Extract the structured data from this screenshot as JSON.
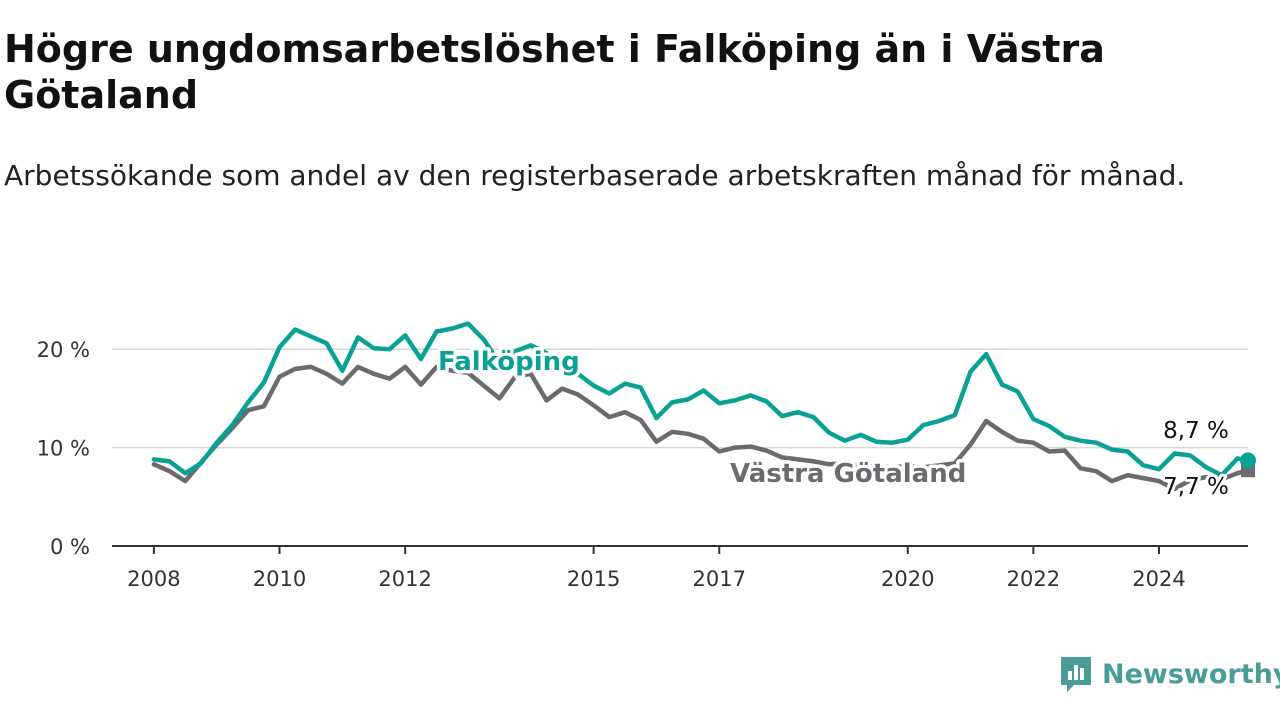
{
  "header": {
    "title": "Högre ungdomsarbetslöshet i Falköping än i Västra Götaland",
    "subtitle": "Arbetssökande som andel av den registerbaserade arbetskraften månad för månad."
  },
  "branding": {
    "name": "Newsworthy",
    "icon": "newsworthy-logo-icon"
  },
  "colors": {
    "falkoping": "#0aa195",
    "vastra_gotaland": "#6b6b6f",
    "grid": "#d6d6d6",
    "axis": "#333333",
    "logo": "#4a9c97"
  },
  "chart_data": {
    "type": "line",
    "title": "Högre ungdomsarbetslöshet i Falköping än i Västra Götaland",
    "xlabel": "",
    "ylabel": "",
    "x_ticks": [
      "2008",
      "2010",
      "2012",
      "2015",
      "2017",
      "2020",
      "2022",
      "2024"
    ],
    "y_ticks": [
      "0 %",
      "10 %",
      "20 %"
    ],
    "ylim": [
      0,
      25
    ],
    "xlim": [
      "2007-05",
      "2025-06"
    ],
    "grid": true,
    "series": [
      {
        "name": "Falköping",
        "color": "#0aa195",
        "end_label": "8,7 %",
        "points": [
          [
            "2008-01",
            8.8
          ],
          [
            "2008-04",
            8.6
          ],
          [
            "2008-07",
            7.4
          ],
          [
            "2008-10",
            8.4
          ],
          [
            "2009-01",
            10.5
          ],
          [
            "2009-04",
            12.3
          ],
          [
            "2009-07",
            14.6
          ],
          [
            "2009-10",
            16.6
          ],
          [
            "2010-01",
            20.2
          ],
          [
            "2010-04",
            22.0
          ],
          [
            "2010-07",
            21.3
          ],
          [
            "2010-10",
            20.6
          ],
          [
            "2011-01",
            17.8
          ],
          [
            "2011-04",
            21.2
          ],
          [
            "2011-07",
            20.1
          ],
          [
            "2011-10",
            20.0
          ],
          [
            "2012-01",
            21.4
          ],
          [
            "2012-04",
            19.0
          ],
          [
            "2012-07",
            21.8
          ],
          [
            "2012-10",
            22.1
          ],
          [
            "2013-01",
            22.6
          ],
          [
            "2013-04",
            21.0
          ],
          [
            "2013-07",
            18.6
          ],
          [
            "2013-10",
            19.8
          ],
          [
            "2014-01",
            20.4
          ],
          [
            "2014-04",
            19.6
          ],
          [
            "2014-07",
            18.0
          ],
          [
            "2014-10",
            17.5
          ],
          [
            "2015-01",
            16.3
          ],
          [
            "2015-04",
            15.5
          ],
          [
            "2015-07",
            16.5
          ],
          [
            "2015-10",
            16.1
          ],
          [
            "2016-01",
            13.0
          ],
          [
            "2016-04",
            14.6
          ],
          [
            "2016-07",
            14.9
          ],
          [
            "2016-10",
            15.8
          ],
          [
            "2017-01",
            14.5
          ],
          [
            "2017-04",
            14.8
          ],
          [
            "2017-07",
            15.3
          ],
          [
            "2017-10",
            14.7
          ],
          [
            "2018-01",
            13.2
          ],
          [
            "2018-04",
            13.6
          ],
          [
            "2018-07",
            13.1
          ],
          [
            "2018-10",
            11.5
          ],
          [
            "2019-01",
            10.7
          ],
          [
            "2019-04",
            11.3
          ],
          [
            "2019-07",
            10.6
          ],
          [
            "2019-10",
            10.5
          ],
          [
            "2020-01",
            10.8
          ],
          [
            "2020-04",
            12.3
          ],
          [
            "2020-07",
            12.7
          ],
          [
            "2020-10",
            13.3
          ],
          [
            "2021-01",
            17.7
          ],
          [
            "2021-04",
            19.5
          ],
          [
            "2021-07",
            16.4
          ],
          [
            "2021-10",
            15.7
          ],
          [
            "2022-01",
            12.9
          ],
          [
            "2022-04",
            12.2
          ],
          [
            "2022-07",
            11.1
          ],
          [
            "2022-10",
            10.7
          ],
          [
            "2023-01",
            10.5
          ],
          [
            "2023-04",
            9.8
          ],
          [
            "2023-07",
            9.6
          ],
          [
            "2023-10",
            8.2
          ],
          [
            "2024-01",
            7.8
          ],
          [
            "2024-04",
            9.4
          ],
          [
            "2024-07",
            9.2
          ],
          [
            "2024-10",
            8.0
          ],
          [
            "2025-01",
            7.2
          ],
          [
            "2025-04",
            8.9
          ],
          [
            "2025-06",
            8.7
          ]
        ]
      },
      {
        "name": "Västra Götaland",
        "color": "#6b6b6f",
        "end_label": "7,7 %",
        "points": [
          [
            "2008-01",
            8.3
          ],
          [
            "2008-04",
            7.6
          ],
          [
            "2008-07",
            6.6
          ],
          [
            "2008-10",
            8.5
          ],
          [
            "2009-01",
            10.3
          ],
          [
            "2009-04",
            12.0
          ],
          [
            "2009-07",
            13.8
          ],
          [
            "2009-10",
            14.2
          ],
          [
            "2010-01",
            17.2
          ],
          [
            "2010-04",
            18.0
          ],
          [
            "2010-07",
            18.2
          ],
          [
            "2010-10",
            17.5
          ],
          [
            "2011-01",
            16.5
          ],
          [
            "2011-04",
            18.2
          ],
          [
            "2011-07",
            17.5
          ],
          [
            "2011-10",
            17.0
          ],
          [
            "2012-01",
            18.2
          ],
          [
            "2012-04",
            16.4
          ],
          [
            "2012-07",
            18.2
          ],
          [
            "2012-10",
            17.8
          ],
          [
            "2013-01",
            17.6
          ],
          [
            "2013-04",
            16.3
          ],
          [
            "2013-07",
            15.0
          ],
          [
            "2013-10",
            17.2
          ],
          [
            "2014-01",
            17.5
          ],
          [
            "2014-04",
            14.8
          ],
          [
            "2014-07",
            16.0
          ],
          [
            "2014-10",
            15.4
          ],
          [
            "2015-01",
            14.3
          ],
          [
            "2015-04",
            13.1
          ],
          [
            "2015-07",
            13.6
          ],
          [
            "2015-10",
            12.8
          ],
          [
            "2016-01",
            10.6
          ],
          [
            "2016-04",
            11.6
          ],
          [
            "2016-07",
            11.4
          ],
          [
            "2016-10",
            10.9
          ],
          [
            "2017-01",
            9.6
          ],
          [
            "2017-04",
            10.0
          ],
          [
            "2017-07",
            10.1
          ],
          [
            "2017-10",
            9.7
          ],
          [
            "2018-01",
            9.0
          ],
          [
            "2018-04",
            8.8
          ],
          [
            "2018-07",
            8.6
          ],
          [
            "2018-10",
            8.3
          ],
          [
            "2019-01",
            8.4
          ],
          [
            "2019-04",
            8.2
          ],
          [
            "2019-07",
            8.1
          ],
          [
            "2019-10",
            8.0
          ],
          [
            "2020-01",
            8.1
          ],
          [
            "2020-04",
            8.0
          ],
          [
            "2020-07",
            8.2
          ],
          [
            "2020-10",
            8.4
          ],
          [
            "2021-01",
            10.3
          ],
          [
            "2021-04",
            12.7
          ],
          [
            "2021-07",
            11.6
          ],
          [
            "2021-10",
            10.7
          ],
          [
            "2022-01",
            10.5
          ],
          [
            "2022-04",
            9.6
          ],
          [
            "2022-07",
            9.7
          ],
          [
            "2022-10",
            7.9
          ],
          [
            "2023-01",
            7.6
          ],
          [
            "2023-04",
            6.6
          ],
          [
            "2023-07",
            7.2
          ],
          [
            "2023-10",
            6.9
          ],
          [
            "2024-01",
            6.6
          ],
          [
            "2024-04",
            5.8
          ],
          [
            "2024-07",
            6.7
          ],
          [
            "2024-10",
            7.0
          ],
          [
            "2025-01",
            6.8
          ],
          [
            "2025-04",
            7.4
          ],
          [
            "2025-06",
            7.7
          ]
        ]
      }
    ]
  }
}
